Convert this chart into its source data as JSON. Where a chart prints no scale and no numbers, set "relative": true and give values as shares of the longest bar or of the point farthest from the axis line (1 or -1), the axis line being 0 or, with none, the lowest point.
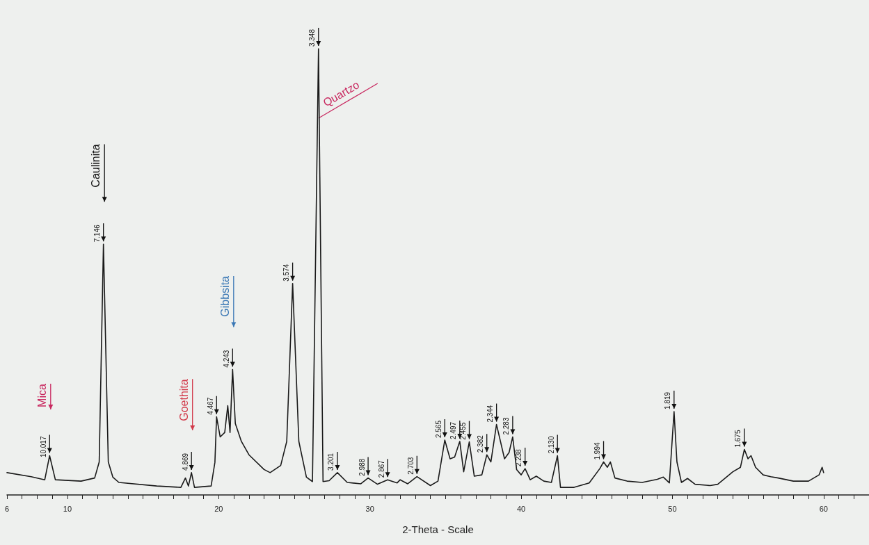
{
  "chart_data": {
    "type": "line",
    "relative": true,
    "xlabel": "2-Theta - Scale",
    "grid": false,
    "marker": "none",
    "line_style": "solid",
    "xlim": [
      6,
      63
    ],
    "xticks": [
      {
        "value": 6,
        "label": "6"
      },
      {
        "value": 7,
        "label": null
      },
      {
        "value": 8,
        "label": null
      },
      {
        "value": 9,
        "label": null
      },
      10,
      {
        "value": 11,
        "label": null
      },
      {
        "value": 12,
        "label": null
      },
      {
        "value": 13,
        "label": null
      },
      {
        "value": 14,
        "label": null
      },
      {
        "value": 15,
        "label": null
      },
      {
        "value": 16,
        "label": null
      },
      {
        "value": 17,
        "label": null
      },
      {
        "value": 18,
        "label": null
      },
      {
        "value": 19,
        "label": null
      },
      20,
      {
        "value": 21,
        "label": null
      },
      {
        "value": 22,
        "label": null
      },
      {
        "value": 23,
        "label": null
      },
      {
        "value": 24,
        "label": null
      },
      {
        "value": 25,
        "label": null
      },
      {
        "value": 26,
        "label": null
      },
      {
        "value": 27,
        "label": null
      },
      {
        "value": 28,
        "label": null
      },
      {
        "value": 29,
        "label": null
      },
      30,
      {
        "value": 31,
        "label": null
      },
      {
        "value": 32,
        "label": null
      },
      {
        "value": 33,
        "label": null
      },
      {
        "value": 34,
        "label": null
      },
      {
        "value": 35,
        "label": null
      },
      {
        "value": 36,
        "label": null
      },
      {
        "value": 37,
        "label": null
      },
      {
        "value": 38,
        "label": null
      },
      {
        "value": 39,
        "label": null
      },
      40,
      {
        "value": 41,
        "label": null
      },
      {
        "value": 42,
        "label": null
      },
      {
        "value": 43,
        "label": null
      },
      {
        "value": 44,
        "label": null
      },
      {
        "value": 45,
        "label": null
      },
      {
        "value": 46,
        "label": null
      },
      {
        "value": 47,
        "label": null
      },
      {
        "value": 48,
        "label": null
      },
      {
        "value": 49,
        "label": null
      },
      50,
      {
        "value": 51,
        "label": null
      },
      {
        "value": 52,
        "label": null
      },
      {
        "value": 53,
        "label": null
      },
      {
        "value": 54,
        "label": null
      },
      {
        "value": 55,
        "label": null
      },
      {
        "value": 56,
        "label": null
      },
      {
        "value": 57,
        "label": null
      },
      {
        "value": 58,
        "label": null
      },
      {
        "value": 59,
        "label": null
      },
      60,
      {
        "value": 61,
        "label": null
      },
      {
        "value": 62,
        "label": null
      },
      {
        "value": 63,
        "label": null
      }
    ],
    "series": [
      {
        "color": "#1a1a1a",
        "x": [
          6.0,
          7.6,
          8.5,
          8.82,
          9.2,
          10.9,
          11.8,
          12.1,
          12.38,
          12.7,
          13.0,
          13.4,
          15.9,
          17.5,
          17.8,
          18.0,
          18.2,
          18.4,
          19.5,
          19.75,
          19.86,
          20.1,
          20.4,
          20.6,
          20.75,
          20.92,
          21.1,
          21.5,
          22.0,
          23.0,
          23.4,
          24.1,
          24.5,
          24.89,
          25.3,
          25.8,
          26.2,
          26.6,
          26.9,
          27.3,
          27.85,
          28.5,
          29.4,
          29.88,
          30.5,
          31.17,
          31.8,
          32.0,
          32.5,
          33.11,
          34.0,
          34.5,
          34.95,
          35.3,
          35.6,
          35.94,
          36.2,
          36.57,
          36.9,
          37.4,
          37.73,
          38.0,
          38.37,
          38.9,
          39.2,
          39.44,
          39.7,
          40.0,
          40.26,
          40.6,
          41.0,
          41.5,
          42.0,
          42.4,
          42.6,
          43.5,
          44.5,
          45.2,
          45.45,
          45.7,
          45.9,
          46.2,
          47.0,
          48.0,
          49.0,
          49.4,
          49.8,
          50.11,
          50.3,
          50.6,
          51.0,
          51.5,
          52.5,
          53.0,
          53.5,
          54.0,
          54.5,
          54.76,
          55.0,
          55.2,
          55.5,
          56.0,
          56.5,
          57.0,
          58.0,
          59.0,
          59.7,
          59.9,
          60.0
        ],
        "values": [
          0.05,
          0.041,
          0.034,
          0.088,
          0.034,
          0.031,
          0.038,
          0.074,
          0.562,
          0.074,
          0.04,
          0.028,
          0.02,
          0.017,
          0.038,
          0.02,
          0.05,
          0.017,
          0.02,
          0.073,
          0.175,
          0.13,
          0.14,
          0.2,
          0.14,
          0.281,
          0.16,
          0.12,
          0.09,
          0.057,
          0.05,
          0.066,
          0.12,
          0.474,
          0.12,
          0.04,
          0.03,
          1.0,
          0.03,
          0.032,
          0.05,
          0.028,
          0.025,
          0.038,
          0.024,
          0.034,
          0.027,
          0.034,
          0.025,
          0.041,
          0.021,
          0.031,
          0.123,
          0.081,
          0.085,
          0.12,
          0.052,
          0.119,
          0.042,
          0.045,
          0.09,
          0.074,
          0.158,
          0.081,
          0.095,
          0.13,
          0.057,
          0.045,
          0.059,
          0.034,
          0.042,
          0.031,
          0.028,
          0.088,
          0.017,
          0.017,
          0.027,
          0.059,
          0.074,
          0.062,
          0.074,
          0.038,
          0.031,
          0.028,
          0.035,
          0.04,
          0.027,
          0.187,
          0.074,
          0.028,
          0.037,
          0.024,
          0.021,
          0.024,
          0.038,
          0.052,
          0.062,
          0.102,
          0.081,
          0.088,
          0.062,
          0.045,
          0.041,
          0.038,
          0.031,
          0.031,
          0.045,
          0.062,
          0.05
        ]
      }
    ],
    "annotations": [
      {
        "text": "10.017",
        "x": 8.82,
        "y": 0.088
      },
      "Mica",
      {
        "text": "7.146",
        "x": 12.38,
        "y": 0.562
      },
      "Caulinita",
      {
        "text": "4.869",
        "x": 18.2,
        "y": 0.05
      },
      "Goethita",
      {
        "text": "4.467",
        "x": 19.86,
        "y": 0.175
      },
      {
        "text": "4.243",
        "x": 20.92,
        "y": 0.281
      },
      "Gibbsita",
      {
        "text": "3.574",
        "x": 24.89,
        "y": 0.474
      },
      {
        "text": "3.348",
        "x": 26.6,
        "y": 1.0
      },
      {
        "text": "Quartzo",
        "x": 26.6,
        "y": 1.0
      },
      {
        "text": "3.201",
        "x": 27.85,
        "y": 0.05
      },
      {
        "text": "2.988",
        "x": 29.88,
        "y": 0.038
      },
      {
        "text": "2.867",
        "x": 31.17,
        "y": 0.034
      },
      {
        "text": "2.703",
        "x": 33.11,
        "y": 0.041
      },
      {
        "text": "2.565",
        "x": 34.95,
        "y": 0.123
      },
      {
        "text": "2.497",
        "x": 35.94,
        "y": 0.12
      },
      {
        "text": "2.455",
        "x": 36.57,
        "y": 0.119
      },
      {
        "text": "2.382",
        "x": 37.73,
        "y": 0.09
      },
      {
        "text": "2.344",
        "x": 38.37,
        "y": 0.158
      },
      {
        "text": "2.283",
        "x": 39.44,
        "y": 0.13
      },
      {
        "text": "2.238",
        "x": 40.26,
        "y": 0.059
      },
      {
        "text": "2.130",
        "x": 42.4,
        "y": 0.088
      },
      {
        "text": "1.994",
        "x": 45.45,
        "y": 0.074
      },
      {
        "text": "1.819",
        "x": 50.11,
        "y": 0.187
      },
      {
        "text": "1.675",
        "x": 54.76,
        "y": 0.102
      }
    ]
  }
}
